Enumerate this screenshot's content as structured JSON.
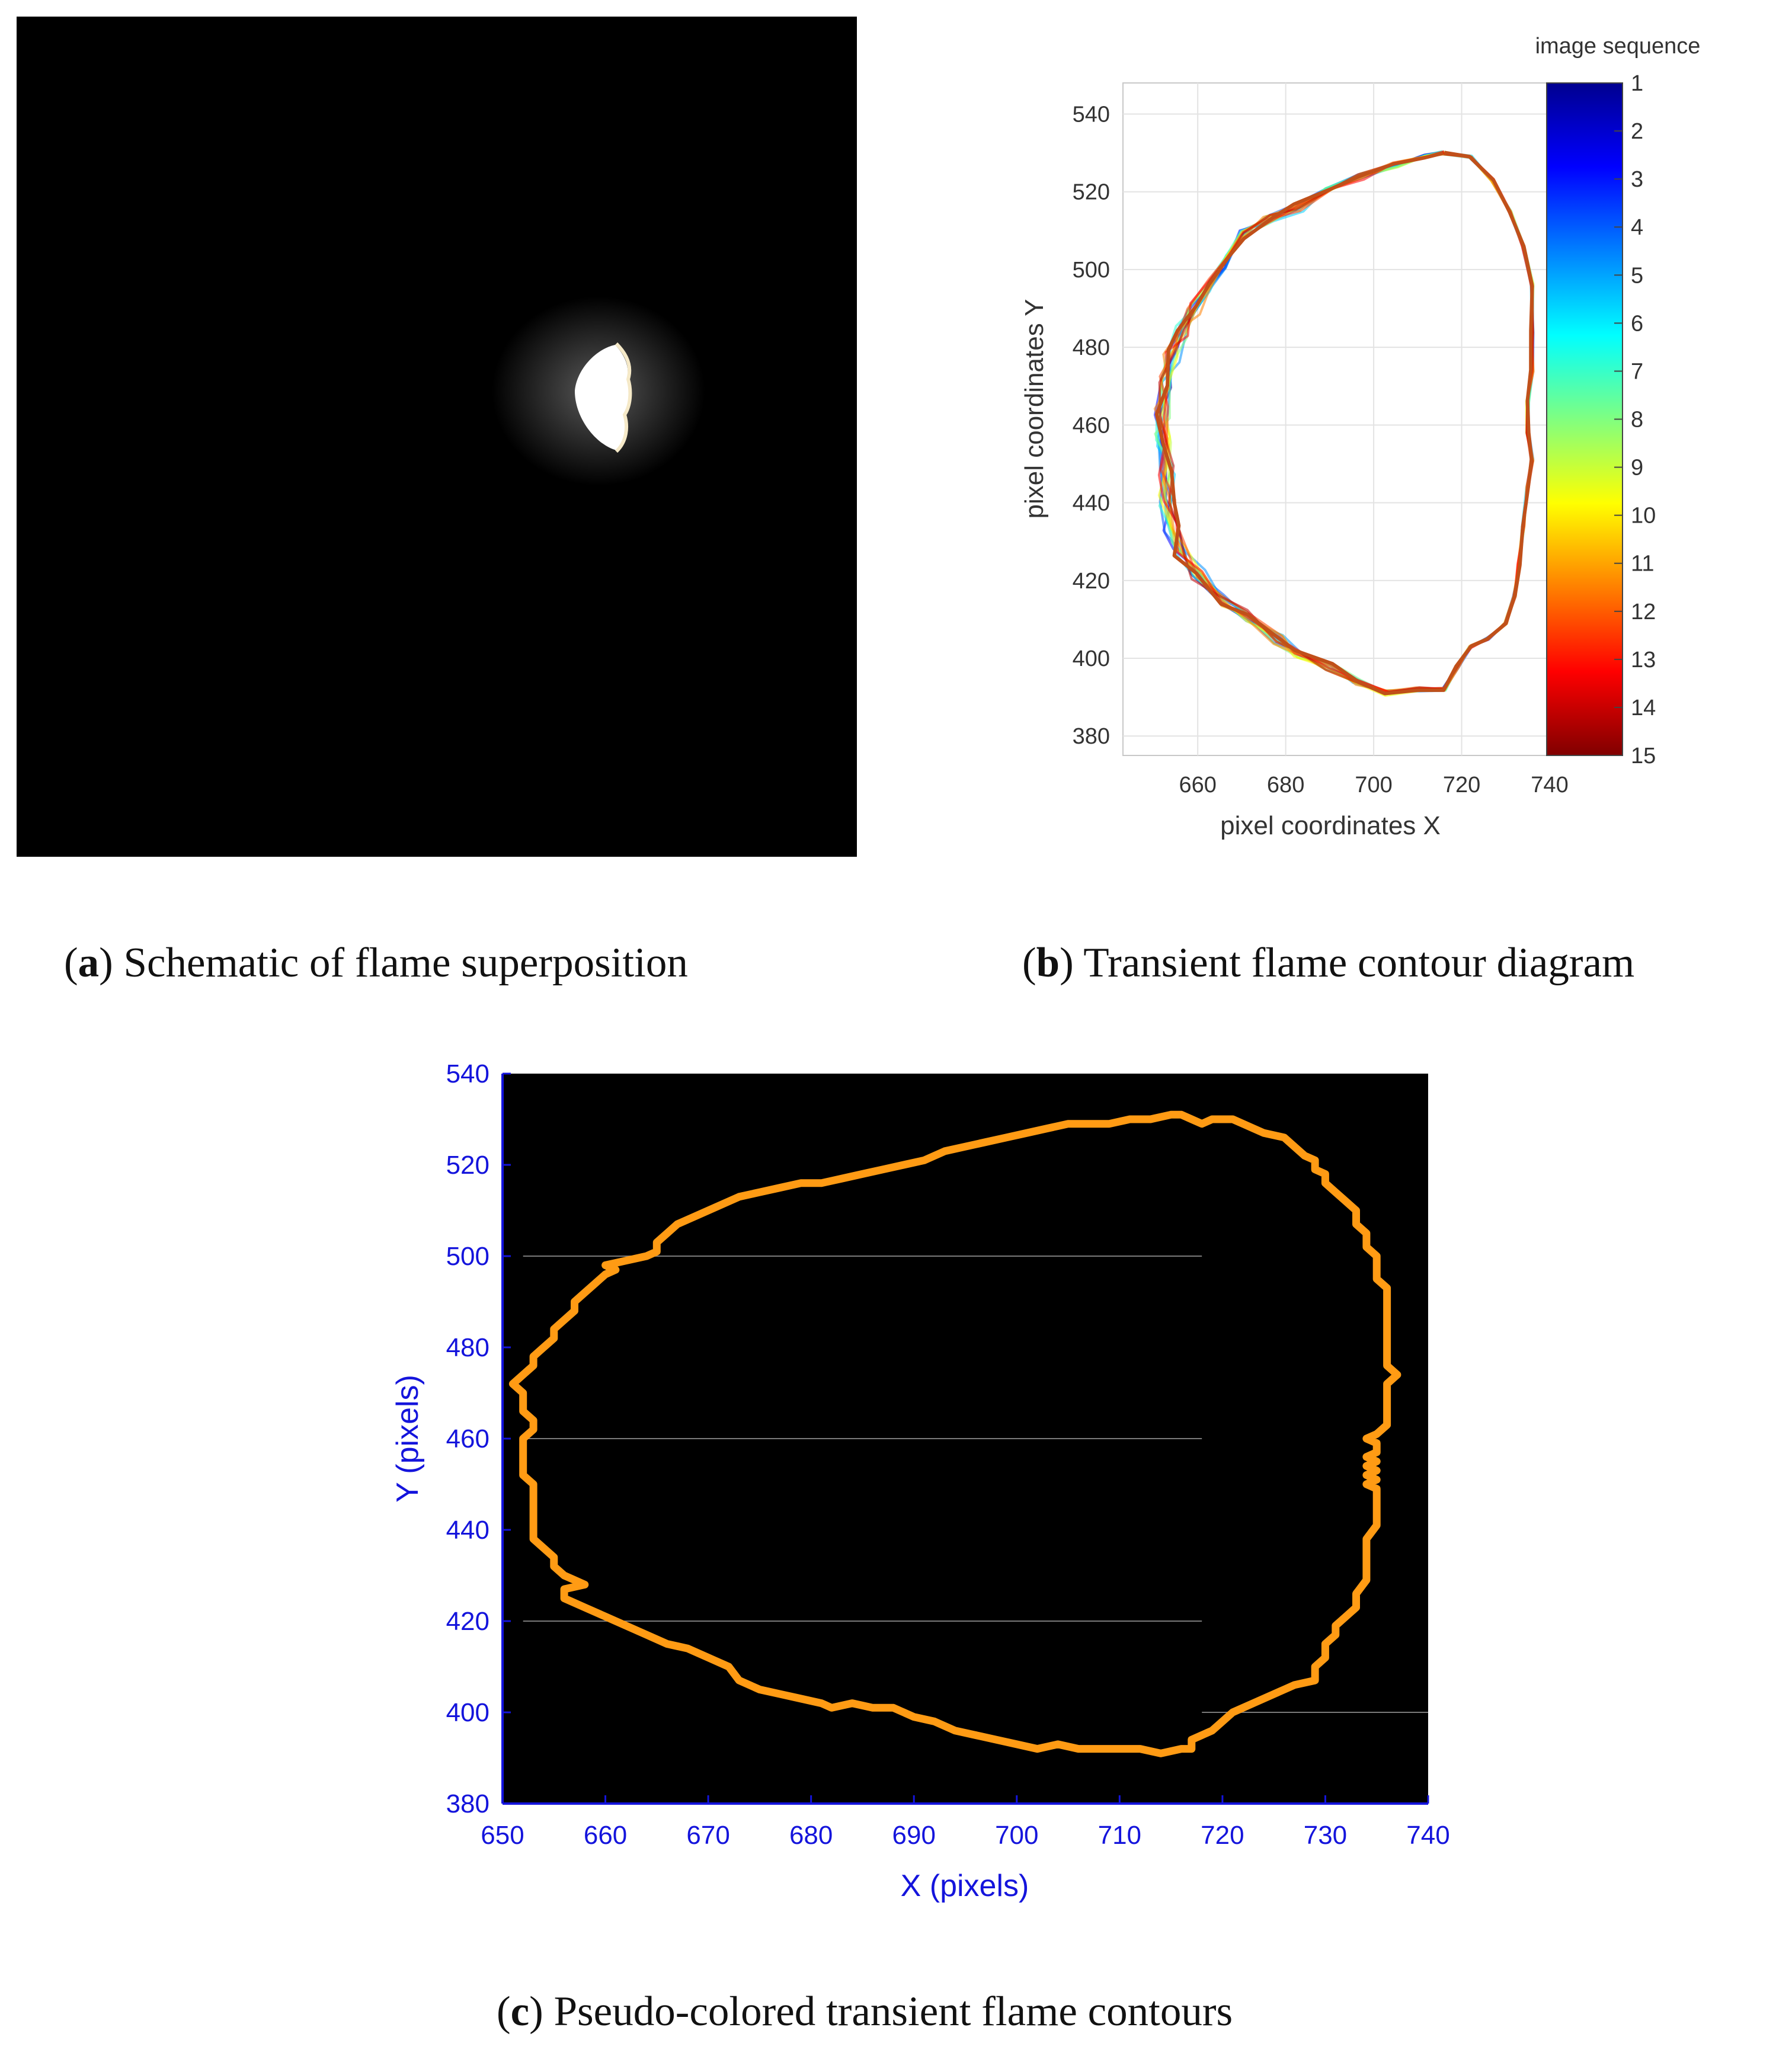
{
  "captions": {
    "a": {
      "letter": "a",
      "text": ") Schematic of flame superposition"
    },
    "b": {
      "letter": "b",
      "text": ") Transient flame contour diagram"
    },
    "c": {
      "letter": "c",
      "text": ") Pseudo-colored transient flame contours"
    }
  },
  "photo": {
    "background": "#000000",
    "flame_color": "#ffffff"
  },
  "chart_data": [
    {
      "id": "b",
      "type": "line",
      "title": "",
      "xlabel": "pixel coordinates X",
      "ylabel": "pixel coordinates Y",
      "xlim": [
        643,
        740
      ],
      "ylim": [
        375,
        548
      ],
      "xticks": [
        660,
        680,
        700,
        720,
        740
      ],
      "yticks": [
        380,
        400,
        420,
        440,
        460,
        480,
        500,
        520,
        540
      ],
      "grid": true,
      "colorbar": {
        "title": "image sequence",
        "ticks": [
          "1",
          "2",
          "3",
          "4",
          "5",
          "6",
          "7",
          "8",
          "9",
          "10",
          "11",
          "12",
          "13",
          "14",
          "15"
        ],
        "colormap": [
          "#00008f",
          "#0000ff",
          "#0080ff",
          "#00ffff",
          "#80ff80",
          "#ffff00",
          "#ff8000",
          "#ff0000",
          "#800000"
        ]
      },
      "series": [
        {
          "values": [
            [
              716,
              530
            ],
            [
              722,
              529
            ],
            [
              727,
              523
            ],
            [
              731,
              515
            ],
            [
              734,
              506
            ],
            [
              736,
              496
            ],
            [
              736,
              484
            ],
            [
              736,
              474
            ],
            [
              735,
              466
            ],
            [
              735,
              458
            ],
            [
              736,
              451
            ],
            [
              735,
              444
            ],
            [
              734,
              434
            ],
            [
              733,
              424
            ],
            [
              732,
              416
            ],
            [
              730,
              409
            ],
            [
              726,
              405
            ],
            [
              722,
              403
            ],
            [
              719,
              398
            ],
            [
              716,
              392
            ],
            [
              710,
              392
            ],
            [
              703,
              391
            ],
            [
              696,
              394
            ],
            [
              690,
              398
            ],
            [
              683,
              401
            ],
            [
              678,
              405
            ],
            [
              672,
              411
            ],
            [
              666,
              415
            ],
            [
              660,
              422
            ],
            [
              656,
              428
            ],
            [
              654,
              434
            ],
            [
              653,
              441
            ],
            [
              653,
              448
            ],
            [
              652,
              456
            ],
            [
              652,
              463
            ],
            [
              653,
              471
            ],
            [
              654,
              478
            ],
            [
              656,
              484
            ],
            [
              659,
              490
            ],
            [
              662,
              496
            ],
            [
              666,
              502
            ],
            [
              670,
              509
            ],
            [
              676,
              513
            ],
            [
              683,
              516
            ],
            [
              690,
              520
            ],
            [
              697,
              524
            ],
            [
              705,
              527
            ],
            [
              712,
              529
            ],
            [
              716,
              530
            ]
          ]
        }
      ]
    },
    {
      "id": "c",
      "type": "line",
      "title": "",
      "xlabel": "X (pixels)",
      "ylabel": "Y (pixels)",
      "xlim": [
        650,
        740
      ],
      "ylim": [
        380,
        540
      ],
      "xticks": [
        650,
        660,
        670,
        680,
        690,
        700,
        710,
        720,
        730,
        740
      ],
      "yticks": [
        380,
        400,
        420,
        440,
        460,
        480,
        500,
        520,
        540
      ],
      "background": "#000000",
      "line_color": "#ff9b14",
      "series": [
        {
          "values": [
            [
              715,
              531
            ],
            [
              716,
              531
            ],
            [
              717,
              530
            ],
            [
              718,
              529
            ],
            [
              719,
              530
            ],
            [
              721,
              530
            ],
            [
              722,
              529
            ],
            [
              723,
              528
            ],
            [
              724,
              527
            ],
            [
              726,
              526
            ],
            [
              727,
              524
            ],
            [
              728,
              522
            ],
            [
              729,
              521
            ],
            [
              729,
              519
            ],
            [
              730,
              518
            ],
            [
              730,
              516
            ],
            [
              731,
              514
            ],
            [
              732,
              512
            ],
            [
              733,
              510
            ],
            [
              733,
              507
            ],
            [
              734,
              505
            ],
            [
              734,
              502
            ],
            [
              735,
              500
            ],
            [
              735,
              497
            ],
            [
              735,
              495
            ],
            [
              736,
              493
            ],
            [
              736,
              491
            ],
            [
              736,
              488
            ],
            [
              736,
              485
            ],
            [
              736,
              482
            ],
            [
              736,
              479
            ],
            [
              736,
              476
            ],
            [
              737,
              474
            ],
            [
              736,
              472
            ],
            [
              736,
              469
            ],
            [
              736,
              466
            ],
            [
              736,
              463
            ],
            [
              735,
              461
            ],
            [
              734,
              460
            ],
            [
              735,
              459
            ],
            [
              735,
              457
            ],
            [
              734,
              456
            ],
            [
              735,
              455
            ],
            [
              734,
              454
            ],
            [
              735,
              453
            ],
            [
              734,
              452
            ],
            [
              735,
              451
            ],
            [
              734,
              450
            ],
            [
              735,
              449
            ],
            [
              735,
              447
            ],
            [
              735,
              444
            ],
            [
              735,
              441
            ],
            [
              734,
              438
            ],
            [
              734,
              435
            ],
            [
              734,
              432
            ],
            [
              734,
              429
            ],
            [
              733,
              426
            ],
            [
              733,
              423
            ],
            [
              732,
              421
            ],
            [
              731,
              419
            ],
            [
              731,
              417
            ],
            [
              730,
              415
            ],
            [
              730,
              412
            ],
            [
              729,
              410
            ],
            [
              729,
              407
            ],
            [
              727,
              406
            ],
            [
              725,
              404
            ],
            [
              723,
              402
            ],
            [
              721,
              400
            ],
            [
              720,
              398
            ],
            [
              719,
              396
            ],
            [
              717,
              394
            ],
            [
              717,
              392
            ],
            [
              716,
              392
            ],
            [
              714,
              391
            ],
            [
              712,
              392
            ],
            [
              710,
              392
            ],
            [
              708,
              392
            ],
            [
              706,
              392
            ],
            [
              704,
              393
            ],
            [
              702,
              392
            ],
            [
              700,
              393
            ],
            [
              698,
              394
            ],
            [
              696,
              395
            ],
            [
              694,
              396
            ],
            [
              692,
              398
            ],
            [
              690,
              399
            ],
            [
              688,
              401
            ],
            [
              686,
              401
            ],
            [
              684,
              402
            ],
            [
              682,
              401
            ],
            [
              681,
              402
            ],
            [
              679,
              403
            ],
            [
              677,
              404
            ],
            [
              675,
              405
            ],
            [
              673,
              407
            ],
            [
              672,
              410
            ],
            [
              670,
              412
            ],
            [
              668,
              414
            ],
            [
              666,
              415
            ],
            [
              664,
              417
            ],
            [
              662,
              419
            ],
            [
              660,
              421
            ],
            [
              658,
              423
            ],
            [
              656,
              425
            ],
            [
              656,
              427
            ],
            [
              658,
              428
            ],
            [
              657,
              429
            ],
            [
              656,
              430
            ],
            [
              655,
              432
            ],
            [
              655,
              434
            ],
            [
              654,
              436
            ],
            [
              653,
              438
            ],
            [
              653,
              440
            ],
            [
              653,
              442
            ],
            [
              653,
              444
            ],
            [
              653,
              446
            ],
            [
              653,
              448
            ],
            [
              653,
              450
            ],
            [
              652,
              452
            ],
            [
              652,
              454
            ],
            [
              652,
              456
            ],
            [
              652,
              458
            ],
            [
              652,
              460
            ],
            [
              653,
              462
            ],
            [
              653,
              464
            ],
            [
              652,
              466
            ],
            [
              652,
              468
            ],
            [
              652,
              470
            ],
            [
              651,
              472
            ],
            [
              652,
              474
            ],
            [
              653,
              476
            ],
            [
              653,
              478
            ],
            [
              654,
              480
            ],
            [
              655,
              482
            ],
            [
              655,
              484
            ],
            [
              656,
              486
            ],
            [
              657,
              488
            ],
            [
              657,
              490
            ],
            [
              658,
              492
            ],
            [
              659,
              494
            ],
            [
              660,
              496
            ],
            [
              661,
              497
            ],
            [
              660,
              498
            ],
            [
              662,
              499
            ],
            [
              664,
              500
            ],
            [
              665,
              501
            ],
            [
              665,
              503
            ],
            [
              666,
              505
            ],
            [
              667,
              507
            ],
            [
              669,
              509
            ],
            [
              671,
              511
            ],
            [
              673,
              513
            ],
            [
              675,
              514
            ],
            [
              677,
              515
            ],
            [
              679,
              516
            ],
            [
              681,
              516
            ],
            [
              683,
              517
            ],
            [
              685,
              518
            ],
            [
              687,
              519
            ],
            [
              689,
              520
            ],
            [
              691,
              521
            ],
            [
              693,
              523
            ],
            [
              695,
              524
            ],
            [
              697,
              525
            ],
            [
              699,
              526
            ],
            [
              701,
              527
            ],
            [
              703,
              528
            ],
            [
              705,
              529
            ],
            [
              707,
              529
            ],
            [
              709,
              529
            ],
            [
              711,
              530
            ],
            [
              713,
              530
            ],
            [
              715,
              531
            ]
          ]
        }
      ]
    }
  ]
}
